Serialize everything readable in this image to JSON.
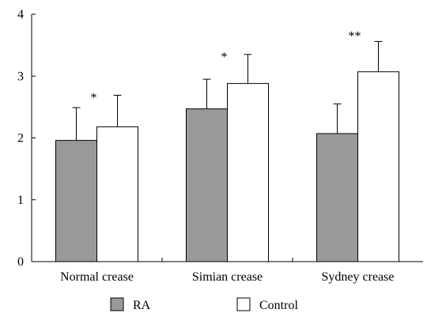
{
  "chart_data": {
    "type": "bar",
    "title": "",
    "xlabel": "",
    "ylabel": "",
    "categories": [
      "Normal crease",
      "Simian crease",
      "Sydney crease"
    ],
    "ylim": [
      0,
      4
    ],
    "yticks": [
      0,
      1,
      2,
      3,
      4
    ],
    "series": [
      {
        "name": "RA",
        "values": [
          1.96,
          2.47,
          2.07
        ],
        "errors": [
          0.53,
          0.48,
          0.48
        ],
        "color": "#999999"
      },
      {
        "name": "Control",
        "values": [
          2.18,
          2.88,
          3.07
        ],
        "errors": [
          0.51,
          0.47,
          0.49
        ],
        "color": "#ffffff"
      }
    ],
    "annotations": [
      "*",
      "*",
      "**"
    ],
    "legend": {
      "placement": "bottom"
    },
    "grid": false
  }
}
